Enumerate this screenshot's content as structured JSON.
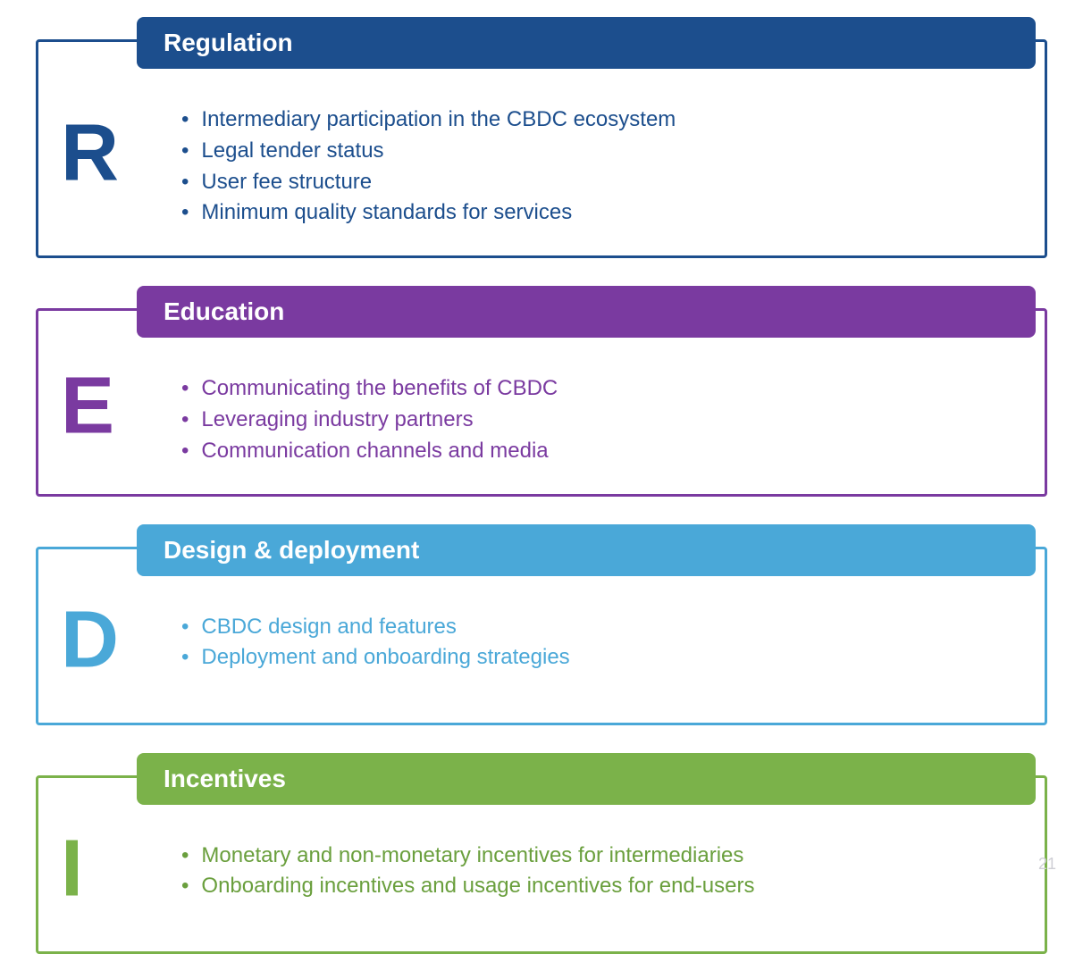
{
  "page_number": "21",
  "background_color": "#ffffff",
  "card_header_height": 58,
  "card_header_radius": 8,
  "letter_fontsize": 90,
  "header_fontsize": 28,
  "bullet_fontsize": 24,
  "cards": [
    {
      "letter": "R",
      "title": "Regulation",
      "color": "#1c4e8d",
      "text_color": "#1c4e8d",
      "bullets": [
        "Intermediary participation in the CBDC ecosystem",
        "Legal tender status",
        "User fee structure",
        "Minimum quality standards for services"
      ]
    },
    {
      "letter": "E",
      "title": "Education",
      "color": "#7a3aa0",
      "text_color": "#7a3aa0",
      "bullets": [
        "Communicating the benefits of CBDC",
        "Leveraging industry partners",
        "Communication channels and media"
      ]
    },
    {
      "letter": "D",
      "title": "Design & deployment",
      "color": "#4aa8d8",
      "text_color": "#4aa8d8",
      "bullets": [
        "CBDC design and features",
        "Deployment and onboarding strategies"
      ]
    },
    {
      "letter": "I",
      "title": "Incentives",
      "color": "#7bb24a",
      "text_color": "#6a9f3d",
      "bullets": [
        "Monetary and non-monetary incentives for intermediaries",
        "Onboarding incentives and usage incentives for end-users"
      ]
    }
  ]
}
